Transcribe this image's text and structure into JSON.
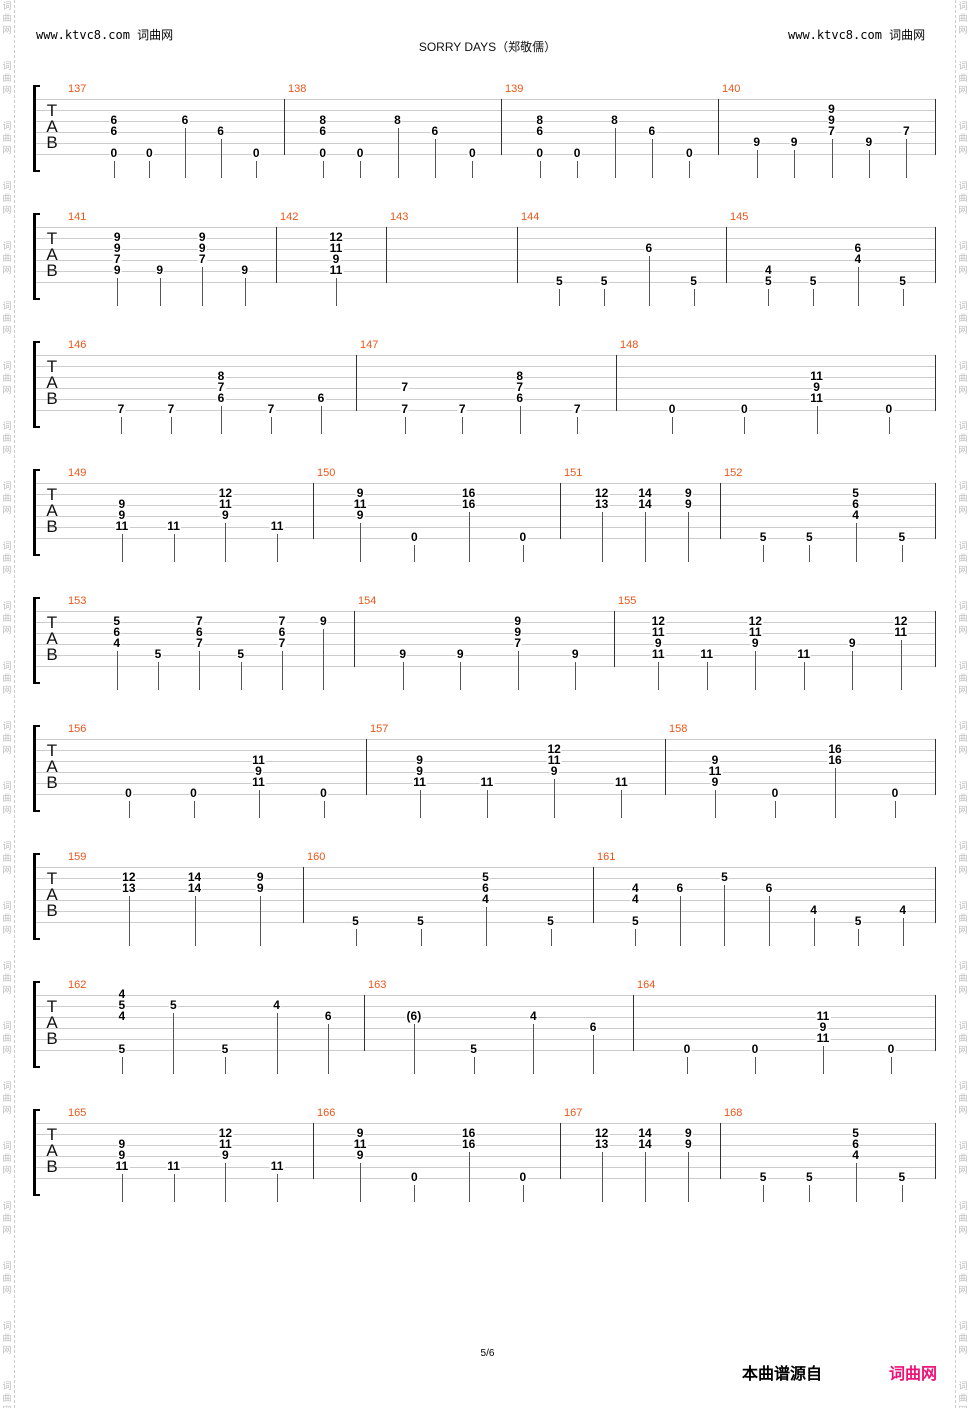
{
  "header": {
    "left_site": "www.ktvc8.com 词曲网",
    "right_site": "www.ktvc8.com 词曲网",
    "title": "SORRY DAYS（郑敬儒）"
  },
  "watermark": "词曲网",
  "tab_label": [
    "T",
    "A",
    "B"
  ],
  "footer": {
    "page": "5/6",
    "source_label": "本曲谱源自",
    "source_brand": "词曲网"
  },
  "systems": [
    {
      "measures": [
        {
          "number": "137",
          "chords": [
            {
              "3": "6",
              "4": "6",
              "6": "0"
            },
            {
              "6": "0"
            },
            {
              "3": "6"
            },
            {
              "4": "6"
            },
            {
              "6": "0"
            }
          ]
        },
        {
          "number": "138",
          "chords": [
            {
              "3": "8",
              "4": "6",
              "6": "0"
            },
            {
              "6": "0"
            },
            {
              "3": "8"
            },
            {
              "4": "6"
            },
            {
              "6": "0"
            }
          ]
        },
        {
          "number": "139",
          "chords": [
            {
              "3": "8",
              "4": "6",
              "6": "0"
            },
            {
              "6": "0"
            },
            {
              "3": "8"
            },
            {
              "4": "6"
            },
            {
              "6": "0"
            }
          ]
        },
        {
          "number": "140",
          "chords": [
            {
              "5": "9"
            },
            {
              "5": "9"
            },
            {
              "2": "9",
              "3": "9",
              "4": "7"
            },
            {
              "5": "9"
            },
            {
              "4": "7"
            }
          ]
        }
      ]
    },
    {
      "measures": [
        {
          "number": "141",
          "chords": [
            {
              "2": "9",
              "3": "9",
              "4": "7",
              "5": "9"
            },
            {
              "5": "9"
            },
            {
              "2": "9",
              "3": "9",
              "4": "7"
            },
            {
              "5": "9"
            }
          ]
        },
        {
          "number": "142",
          "chords": [
            {
              "2": "12",
              "3": "11",
              "4": "9",
              "5": "11"
            }
          ]
        },
        {
          "number": "143",
          "chords": []
        },
        {
          "number": "144",
          "chords": [
            {
              "6": "5"
            },
            {
              "6": "5"
            },
            {
              "3": "6"
            },
            {
              "6": "5"
            }
          ]
        },
        {
          "number": "145",
          "chords": [
            {
              "5": "4",
              "6": "5"
            },
            {
              "6": "5"
            },
            {
              "3": "6",
              "4": "4"
            },
            {
              "6": "5"
            }
          ]
        }
      ]
    },
    {
      "measures": [
        {
          "number": "146",
          "chords": [
            {
              "6": "7"
            },
            {
              "6": "7"
            },
            {
              "3": "8",
              "4": "7",
              "5": "6"
            },
            {
              "6": "7"
            },
            {
              "5": "6"
            }
          ]
        },
        {
          "number": "147",
          "chords": [
            {
              "4": "7",
              "6": "7"
            },
            {
              "6": "7"
            },
            {
              "3": "8",
              "4": "7",
              "5": "6"
            },
            {
              "6": "7"
            }
          ]
        },
        {
          "number": "148",
          "chords": [
            {
              "6": "0"
            },
            {
              "6": "0"
            },
            {
              "3": "11",
              "4": "9",
              "5": "11"
            },
            {
              "6": "0"
            }
          ]
        }
      ]
    },
    {
      "measures": [
        {
          "number": "149",
          "chords": [
            {
              "3": "9",
              "4": "9",
              "5": "11"
            },
            {
              "5": "11"
            },
            {
              "2": "12",
              "3": "11",
              "4": "9"
            },
            {
              "5": "11"
            }
          ]
        },
        {
          "number": "150",
          "chords": [
            {
              "2": "9",
              "3": "11",
              "4": "9"
            },
            {
              "6": "0"
            },
            {
              "2": "16",
              "3": "16"
            },
            {
              "6": "0"
            }
          ]
        },
        {
          "number": "151",
          "chords": [
            {
              "2": "12",
              "3": "13"
            },
            {
              "2": "14",
              "3": "14"
            },
            {
              "2": "9",
              "3": "9"
            }
          ]
        },
        {
          "number": "152",
          "chords": [
            {
              "6": "5"
            },
            {
              "6": "5"
            },
            {
              "2": "5",
              "3": "6",
              "4": "4"
            },
            {
              "6": "5"
            }
          ]
        }
      ]
    },
    {
      "measures": [
        {
          "number": "153",
          "chords": [
            {
              "2": "5",
              "3": "6",
              "4": "4"
            },
            {
              "5": "5"
            },
            {
              "2": "7",
              "3": "6",
              "4": "7"
            },
            {
              "5": "5"
            },
            {
              "2": "7",
              "3": "6",
              "4": "7"
            },
            {
              "2": "9"
            }
          ]
        },
        {
          "number": "154",
          "chords": [
            {
              "5": "9"
            },
            {
              "5": "9"
            },
            {
              "2": "9",
              "3": "9",
              "4": "7"
            },
            {
              "5": "9"
            }
          ]
        },
        {
          "number": "155",
          "chords": [
            {
              "2": "12",
              "3": "11",
              "4": "9",
              "5": "11"
            },
            {
              "5": "11"
            },
            {
              "2": "12",
              "3": "11",
              "4": "9"
            },
            {
              "5": "11"
            },
            {
              "4": "9"
            },
            {
              "2": "12",
              "3": "11"
            }
          ]
        }
      ]
    },
    {
      "measures": [
        {
          "number": "156",
          "chords": [
            {
              "6": "0"
            },
            {
              "6": "0"
            },
            {
              "3": "11",
              "4": "9",
              "5": "11"
            },
            {
              "6": "0"
            }
          ]
        },
        {
          "number": "157",
          "chords": [
            {
              "3": "9",
              "4": "9",
              "5": "11"
            },
            {
              "5": "11"
            },
            {
              "2": "12",
              "3": "11",
              "4": "9"
            },
            {
              "5": "11"
            }
          ]
        },
        {
          "number": "158",
          "chords": [
            {
              "3": "9",
              "4": "11",
              "5": "9"
            },
            {
              "6": "0"
            },
            {
              "2": "16",
              "3": "16"
            },
            {
              "6": "0"
            }
          ]
        }
      ]
    },
    {
      "measures": [
        {
          "number": "159",
          "chords": [
            {
              "2": "12",
              "3": "13"
            },
            {
              "2": "14",
              "3": "14"
            },
            {
              "2": "9",
              "3": "9"
            }
          ]
        },
        {
          "number": "160",
          "chords": [
            {
              "6": "5"
            },
            {
              "6": "5"
            },
            {
              "2": "5",
              "3": "6",
              "4": "4"
            },
            {
              "6": "5"
            }
          ]
        },
        {
          "number": "161",
          "chords": [
            {
              "3": "4",
              "4": "4",
              "6": "5"
            },
            {
              "3": "6"
            },
            {
              "2": "5"
            },
            {
              "3": "6"
            },
            {
              "5": "4"
            },
            {
              "6": "5"
            },
            {
              "5": "4"
            }
          ]
        }
      ]
    },
    {
      "measures": [
        {
          "number": "162",
          "chords": [
            {
              "1": "4",
              "2": "5",
              "3": "4",
              "6": "5"
            },
            {
              "2": "5"
            },
            {
              "6": "5"
            },
            {
              "2": "4"
            },
            {
              "3": "6"
            }
          ]
        },
        {
          "number": "163",
          "chords": [
            {
              "3": "(6)"
            },
            {
              "6": "5"
            },
            {
              "3": "4"
            },
            {
              "4": "6"
            }
          ]
        },
        {
          "number": "164",
          "chords": [
            {
              "6": "0"
            },
            {
              "6": "0"
            },
            {
              "3": "11",
              "4": "9",
              "5": "11"
            },
            {
              "6": "0"
            }
          ]
        }
      ]
    },
    {
      "measures": [
        {
          "number": "165",
          "chords": [
            {
              "3": "9",
              "4": "9",
              "5": "11"
            },
            {
              "5": "11"
            },
            {
              "2": "12",
              "3": "11",
              "4": "9"
            },
            {
              "5": "11"
            }
          ]
        },
        {
          "number": "166",
          "chords": [
            {
              "2": "9",
              "3": "11",
              "4": "9"
            },
            {
              "6": "0"
            },
            {
              "2": "16",
              "3": "16"
            },
            {
              "6": "0"
            }
          ]
        },
        {
          "number": "167",
          "chords": [
            {
              "2": "12",
              "3": "13"
            },
            {
              "2": "14",
              "3": "14"
            },
            {
              "2": "9",
              "3": "9"
            }
          ]
        },
        {
          "number": "168",
          "chords": [
            {
              "6": "5"
            },
            {
              "6": "5"
            },
            {
              "2": "5",
              "3": "6",
              "4": "4"
            },
            {
              "6": "5"
            }
          ]
        }
      ]
    }
  ]
}
